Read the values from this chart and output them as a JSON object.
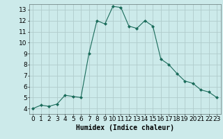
{
  "x": [
    0,
    1,
    2,
    3,
    4,
    5,
    6,
    7,
    8,
    9,
    10,
    11,
    12,
    13,
    14,
    15,
    16,
    17,
    18,
    19,
    20,
    21,
    22,
    23
  ],
  "y": [
    4.0,
    4.3,
    4.2,
    4.4,
    5.2,
    5.1,
    5.0,
    9.0,
    12.0,
    11.7,
    13.3,
    13.2,
    11.5,
    11.3,
    12.0,
    11.5,
    8.5,
    8.0,
    7.2,
    6.5,
    6.3,
    5.7,
    5.5,
    5.0
  ],
  "line_color": "#1a6b5a",
  "marker": "D",
  "marker_size": 2,
  "bg_color": "#cceaea",
  "grid_color": "#b0cccc",
  "xlabel": "Humidex (Indice chaleur)",
  "xlabel_fontsize": 7,
  "xlim": [
    -0.5,
    23.5
  ],
  "ylim": [
    3.5,
    13.5
  ],
  "yticks": [
    4,
    5,
    6,
    7,
    8,
    9,
    10,
    11,
    12,
    13
  ],
  "xticks": [
    0,
    1,
    2,
    3,
    4,
    5,
    6,
    7,
    8,
    9,
    10,
    11,
    12,
    13,
    14,
    15,
    16,
    17,
    18,
    19,
    20,
    21,
    22,
    23
  ],
  "tick_fontsize": 6.5
}
